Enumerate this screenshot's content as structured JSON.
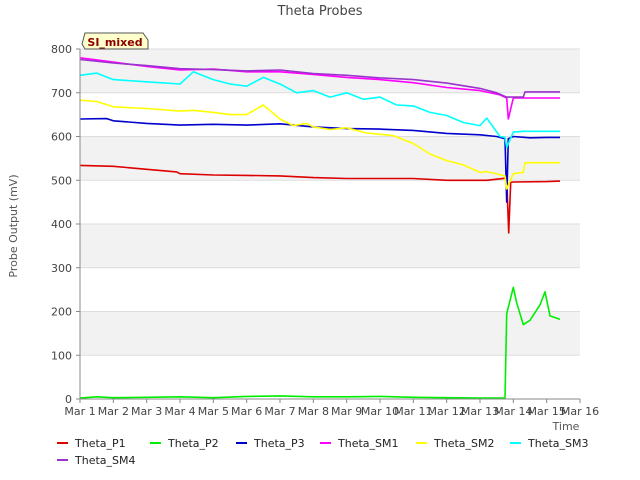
{
  "chart_data": {
    "type": "line",
    "title": "Theta Probes",
    "xlabel": "Time",
    "ylabel": "Probe Output (mV)",
    "site_label": "SI_mixed",
    "x_ticks": [
      "Mar 1",
      "Mar 2",
      "Mar 3",
      "Mar 4",
      "Mar 5",
      "Mar 6",
      "Mar 7",
      "Mar 8",
      "Mar 9",
      "Mar 10",
      "Mar 11",
      "Mar 12",
      "Mar 13",
      "Mar 14",
      "Mar 15",
      "Mar 16"
    ],
    "xlim": [
      1,
      16
    ],
    "ylim": [
      0,
      800
    ],
    "y_ticks": [
      0,
      100,
      200,
      300,
      400,
      500,
      600,
      700,
      800
    ],
    "grid": true,
    "legend_position": "bottom",
    "series": [
      {
        "name": "Theta_P1",
        "color": "#dd0000",
        "x": [
          1.0,
          2.0,
          3.0,
          3.9,
          4.0,
          5.0,
          6.0,
          7.0,
          8.0,
          9.0,
          10.0,
          11.0,
          12.0,
          12.8,
          13.0,
          13.2,
          13.8,
          13.86,
          13.92,
          14.0,
          15.0,
          15.4
        ],
        "y": [
          534,
          532,
          525,
          519,
          515,
          512,
          511,
          510,
          506,
          504,
          504,
          504,
          500,
          500,
          500,
          500,
          505,
          380,
          495,
          496,
          497,
          498
        ]
      },
      {
        "name": "Theta_P2",
        "color": "#00ee00",
        "x": [
          1.0,
          1.5,
          2.0,
          3.0,
          4.0,
          5.0,
          6.0,
          7.0,
          8.0,
          9.0,
          10.0,
          11.0,
          12.0,
          13.0,
          13.75,
          13.8,
          14.0,
          14.1,
          14.3,
          14.5,
          14.8,
          14.95,
          15.1,
          15.3,
          15.4
        ],
        "y": [
          2,
          5,
          3,
          4,
          5,
          3,
          6,
          7,
          5,
          5,
          6,
          4,
          3,
          2,
          2,
          195,
          255,
          220,
          170,
          180,
          215,
          245,
          190,
          185,
          182
        ]
      },
      {
        "name": "Theta_P3",
        "color": "#0000cc",
        "x": [
          1.0,
          1.8,
          2.0,
          3.0,
          4.0,
          5.0,
          6.0,
          7.0,
          8.0,
          9.0,
          10.0,
          11.0,
          12.0,
          13.0,
          13.5,
          13.75,
          13.8,
          13.85,
          14.0,
          14.5,
          15.0,
          15.4
        ],
        "y": [
          640,
          641,
          636,
          630,
          626,
          628,
          626,
          629,
          622,
          618,
          617,
          614,
          607,
          604,
          600,
          595,
          450,
          595,
          600,
          597,
          598,
          598
        ]
      },
      {
        "name": "Theta_SM1",
        "color": "#ff00ff",
        "x": [
          1.0,
          2.0,
          3.0,
          4.0,
          5.0,
          6.0,
          7.0,
          8.0,
          9.0,
          10.0,
          11.0,
          12.0,
          13.0,
          13.6,
          13.8,
          13.85,
          14.0,
          14.5,
          15.0,
          15.4
        ],
        "y": [
          780,
          770,
          760,
          752,
          754,
          748,
          748,
          742,
          735,
          730,
          723,
          712,
          705,
          695,
          688,
          640,
          688,
          688,
          688,
          688
        ]
      },
      {
        "name": "Theta_SM2",
        "color": "#ffff00",
        "x": [
          1.0,
          1.5,
          2.0,
          3.0,
          4.0,
          4.4,
          5.0,
          5.5,
          6.0,
          6.5,
          7.0,
          7.4,
          7.8,
          8.0,
          8.5,
          9.0,
          9.6,
          10.0,
          10.4,
          11.0,
          11.5,
          12.0,
          12.5,
          13.0,
          13.2,
          13.75,
          13.8,
          14.0,
          14.3,
          14.35,
          14.5,
          15.0,
          15.4
        ],
        "y": [
          683,
          680,
          668,
          664,
          658,
          660,
          655,
          650,
          650,
          672,
          640,
          625,
          630,
          622,
          616,
          620,
          608,
          605,
          602,
          584,
          560,
          545,
          535,
          518,
          520,
          510,
          480,
          515,
          518,
          540,
          540,
          540,
          540
        ]
      },
      {
        "name": "Theta_SM3",
        "color": "#00ffff",
        "x": [
          1.0,
          1.5,
          2.0,
          3.0,
          4.0,
          4.4,
          5.0,
          5.5,
          6.0,
          6.5,
          7.0,
          7.5,
          8.0,
          8.5,
          9.0,
          9.5,
          10.0,
          10.5,
          11.0,
          11.5,
          12.0,
          12.5,
          13.0,
          13.2,
          13.6,
          13.75,
          13.8,
          14.0,
          14.3,
          15.0,
          15.4
        ],
        "y": [
          740,
          745,
          730,
          725,
          720,
          748,
          730,
          720,
          715,
          735,
          720,
          700,
          705,
          690,
          700,
          685,
          690,
          672,
          670,
          655,
          648,
          632,
          625,
          642,
          600,
          598,
          575,
          610,
          612,
          612,
          612
        ]
      },
      {
        "name": "Theta_SM4",
        "color": "#9933cc",
        "x": [
          1.0,
          2.0,
          3.0,
          4.0,
          5.0,
          6.0,
          7.0,
          8.0,
          9.0,
          10.0,
          11.0,
          12.0,
          13.0,
          13.5,
          13.8,
          13.82,
          14.0,
          14.3,
          14.35,
          15.0,
          15.4
        ],
        "y": [
          776,
          768,
          762,
          755,
          753,
          750,
          752,
          744,
          740,
          734,
          730,
          722,
          710,
          700,
          690,
          690,
          690,
          690,
          702,
          702,
          702
        ]
      }
    ]
  }
}
